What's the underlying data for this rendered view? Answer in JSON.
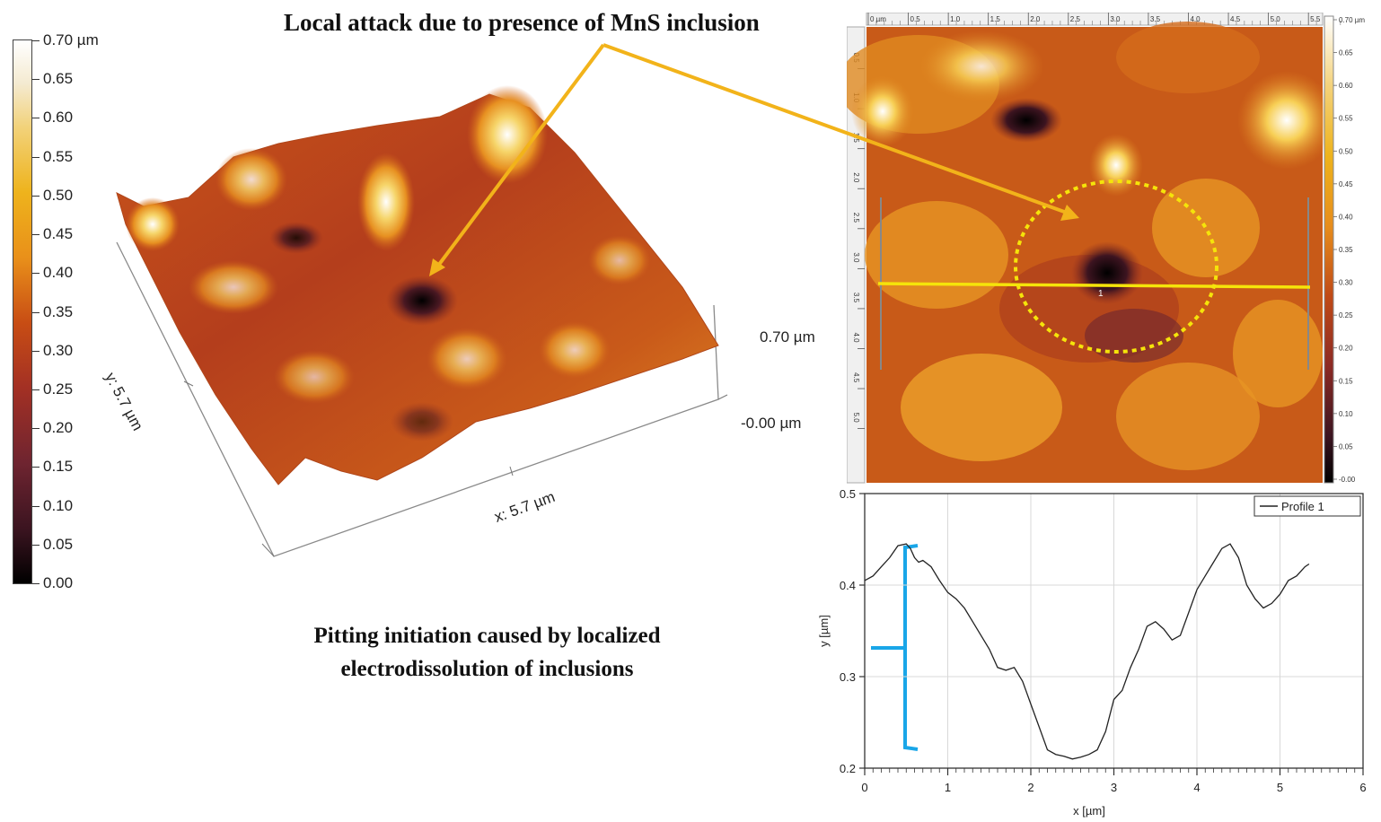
{
  "annotations": {
    "top_title": "Local attack due to presence of MnS inclusion",
    "bottom_caption_line1": "Pitting initiation caused by localized",
    "bottom_caption_line2": "electrodissolution of inclusions"
  },
  "colorbar": {
    "labels": [
      "0.70 µm",
      "0.65",
      "0.60",
      "0.55",
      "0.50",
      "0.45",
      "0.40",
      "0.35",
      "0.30",
      "0.25",
      "0.20",
      "0.15",
      "0.10",
      "0.05",
      "0.00"
    ]
  },
  "surface3d": {
    "z_top": "0.70 µm",
    "z_bottom": "-0.00 µm",
    "x_label": "x: 5.7 µm",
    "y_label": "y: 5.7 µm"
  },
  "afm_map": {
    "top_ticks": [
      "0 µm",
      "0.5",
      "1.0",
      "1.5",
      "2.0",
      "2.5",
      "3.0",
      "3.5",
      "4.0",
      "4.5",
      "5.0",
      "5.5"
    ],
    "left_ticks": [
      "0.5",
      "1.0",
      "1.5",
      "2.0",
      "2.5",
      "3.0",
      "3.5",
      "4.0",
      "4.5",
      "5.0"
    ],
    "scale_labels": [
      "0.70 µm",
      "0.65",
      "0.60",
      "0.55",
      "0.50",
      "0.45",
      "0.40",
      "0.35",
      "0.30",
      "0.25",
      "0.20",
      "0.15",
      "0.10",
      "0.05",
      "-0.00"
    ],
    "profile_marker": "1"
  },
  "colors": {
    "arrow": "#f2b31a",
    "profile_line": "#f5e40a",
    "bracket": "#19a6e8",
    "trace": "#222222"
  },
  "chart_data": {
    "type": "line",
    "title": "",
    "xlabel": "x [µm]",
    "ylabel": "y [µm]",
    "xlim": [
      0,
      6
    ],
    "ylim": [
      0.2,
      0.5
    ],
    "xticks": [
      0,
      1,
      2,
      3,
      4,
      5,
      6
    ],
    "yticks": [
      0.2,
      0.3,
      0.4,
      0.5
    ],
    "legend": "Profile 1",
    "series": [
      {
        "name": "Profile 1",
        "x": [
          0,
          0.1,
          0.2,
          0.3,
          0.4,
          0.5,
          0.55,
          0.6,
          0.65,
          0.7,
          0.8,
          0.9,
          1.0,
          1.1,
          1.2,
          1.3,
          1.4,
          1.5,
          1.6,
          1.7,
          1.8,
          1.9,
          2.0,
          2.1,
          2.2,
          2.3,
          2.4,
          2.5,
          2.6,
          2.7,
          2.8,
          2.9,
          3.0,
          3.1,
          3.2,
          3.3,
          3.4,
          3.5,
          3.6,
          3.7,
          3.8,
          3.9,
          4.0,
          4.1,
          4.2,
          4.3,
          4.4,
          4.5,
          4.6,
          4.7,
          4.8,
          4.9,
          5.0,
          5.1,
          5.2,
          5.3,
          5.35
        ],
        "values": [
          0.405,
          0.41,
          0.42,
          0.43,
          0.443,
          0.445,
          0.44,
          0.43,
          0.425,
          0.427,
          0.42,
          0.405,
          0.392,
          0.385,
          0.375,
          0.36,
          0.345,
          0.33,
          0.31,
          0.307,
          0.31,
          0.295,
          0.27,
          0.245,
          0.22,
          0.215,
          0.213,
          0.21,
          0.212,
          0.215,
          0.22,
          0.24,
          0.275,
          0.285,
          0.31,
          0.33,
          0.355,
          0.36,
          0.352,
          0.34,
          0.345,
          0.37,
          0.395,
          0.41,
          0.425,
          0.44,
          0.445,
          0.43,
          0.4,
          0.385,
          0.375,
          0.38,
          0.39,
          0.405,
          0.41,
          0.42,
          0.423
        ]
      }
    ]
  }
}
